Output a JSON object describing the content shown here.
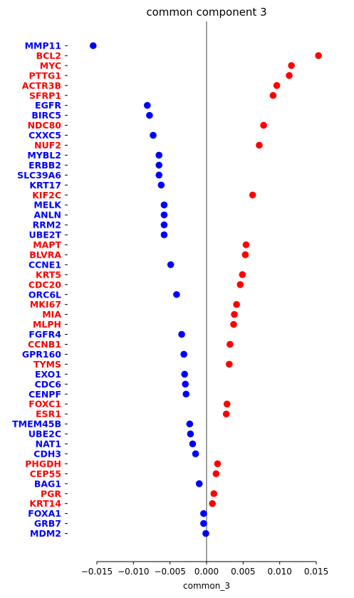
{
  "chart_data": {
    "type": "scatter",
    "title": "common component 3",
    "xlabel": "common_3",
    "ylabel": "",
    "xlim": [
      -0.0185,
      0.0185
    ],
    "xticks": [
      -0.015,
      -0.01,
      -0.005,
      0.0,
      0.005,
      0.01,
      0.015
    ],
    "xtick_labels": [
      "−0.015",
      "−0.010",
      "−0.005",
      "0.000",
      "0.005",
      "0.010",
      "0.015"
    ],
    "zero_line": true,
    "grid": false,
    "colors": {
      "negative": "#0000ff",
      "positive": "#ff0000",
      "zero_line": "#808080"
    },
    "points": [
      {
        "gene": "MMP11",
        "value": -0.0155
      },
      {
        "gene": "BCL2",
        "value": 0.0153
      },
      {
        "gene": "MYC",
        "value": 0.0116
      },
      {
        "gene": "PTTG1",
        "value": 0.0113
      },
      {
        "gene": "ACTR3B",
        "value": 0.0096
      },
      {
        "gene": "SFRP1",
        "value": 0.0091
      },
      {
        "gene": "EGFR",
        "value": -0.0081
      },
      {
        "gene": "BIRC5",
        "value": -0.0078
      },
      {
        "gene": "NDC80",
        "value": 0.0078
      },
      {
        "gene": "CXXC5",
        "value": -0.0073
      },
      {
        "gene": "NUF2",
        "value": 0.0072
      },
      {
        "gene": "MYBL2",
        "value": -0.0065
      },
      {
        "gene": "ERBB2",
        "value": -0.0065
      },
      {
        "gene": "SLC39A6",
        "value": -0.0065
      },
      {
        "gene": "KRT17",
        "value": -0.0062
      },
      {
        "gene": "KIF2C",
        "value": 0.0063
      },
      {
        "gene": "MELK",
        "value": -0.0058
      },
      {
        "gene": "ANLN",
        "value": -0.0058
      },
      {
        "gene": "RRM2",
        "value": -0.0058
      },
      {
        "gene": "UBE2T",
        "value": -0.0058
      },
      {
        "gene": "MAPT",
        "value": 0.0054
      },
      {
        "gene": "BLVRA",
        "value": 0.0053
      },
      {
        "gene": "CCNE1",
        "value": -0.0049
      },
      {
        "gene": "KRT5",
        "value": 0.0049
      },
      {
        "gene": "CDC20",
        "value": 0.0046
      },
      {
        "gene": "ORC6L",
        "value": -0.0041
      },
      {
        "gene": "MKI67",
        "value": 0.0041
      },
      {
        "gene": "MIA",
        "value": 0.0038
      },
      {
        "gene": "MLPH",
        "value": 0.0037
      },
      {
        "gene": "FGFR4",
        "value": -0.0034
      },
      {
        "gene": "CCNB1",
        "value": 0.0032
      },
      {
        "gene": "GPR160",
        "value": -0.0031
      },
      {
        "gene": "TYMS",
        "value": 0.0031
      },
      {
        "gene": "EXO1",
        "value": -0.003
      },
      {
        "gene": "CDC6",
        "value": -0.0029
      },
      {
        "gene": "CENPF",
        "value": -0.0028
      },
      {
        "gene": "FOXC1",
        "value": 0.0028
      },
      {
        "gene": "ESR1",
        "value": 0.0027
      },
      {
        "gene": "TMEM45B",
        "value": -0.0023
      },
      {
        "gene": "UBE2C",
        "value": -0.0022
      },
      {
        "gene": "NAT1",
        "value": -0.0019
      },
      {
        "gene": "CDH3",
        "value": -0.0015
      },
      {
        "gene": "PHGDH",
        "value": 0.0015
      },
      {
        "gene": "CEP55",
        "value": 0.0013
      },
      {
        "gene": "BAG1",
        "value": -0.001
      },
      {
        "gene": "PGR",
        "value": 0.001
      },
      {
        "gene": "KRT14",
        "value": 0.0008
      },
      {
        "gene": "FOXA1",
        "value": -0.0004
      },
      {
        "gene": "GRB7",
        "value": -0.0004
      },
      {
        "gene": "MDM2",
        "value": -0.0001
      }
    ]
  }
}
